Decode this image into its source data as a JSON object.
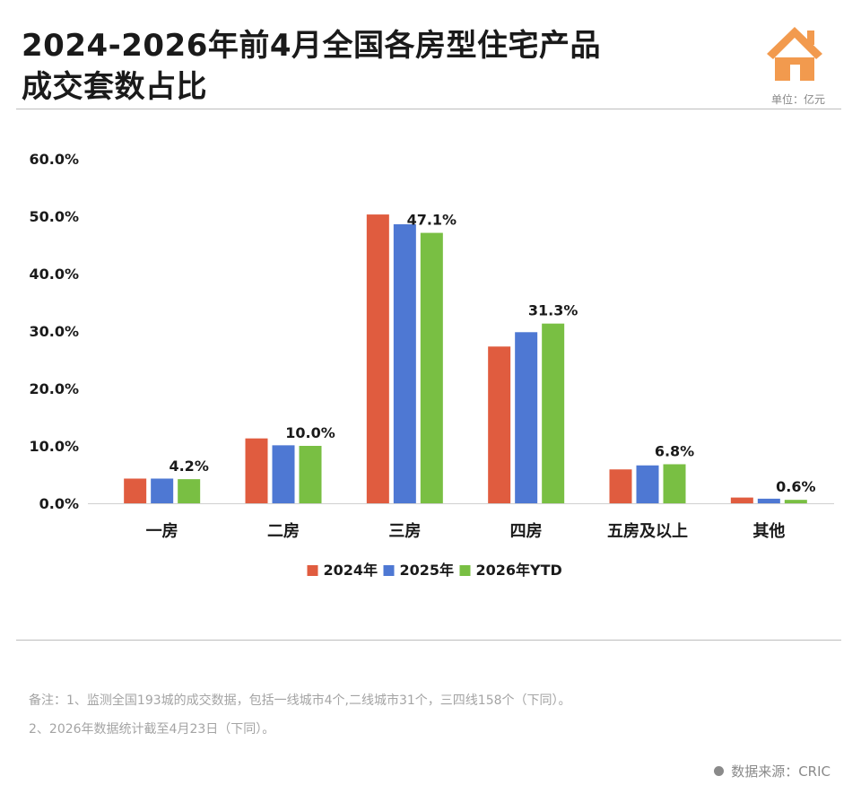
{
  "header": {
    "title_line1": "2024-2026年前4月全国各房型住宅产品",
    "title_line2": "成交套数占比",
    "unit": "单位：亿元",
    "logo_icon": "house-icon"
  },
  "chart_data": {
    "type": "bar",
    "categories": [
      "一房",
      "二房",
      "三房",
      "四房",
      "五房及以上",
      "其他"
    ],
    "series": [
      {
        "name": "2024年",
        "color": "#e05c3f",
        "values": [
          4.3,
          11.3,
          50.3,
          27.3,
          5.9,
          1.0
        ]
      },
      {
        "name": "2025年",
        "color": "#4e78d3",
        "values": [
          4.3,
          10.1,
          48.6,
          29.8,
          6.6,
          0.8
        ]
      },
      {
        "name": "2026年YTD",
        "color": "#79bf43",
        "values": [
          4.2,
          10.0,
          47.1,
          31.3,
          6.8,
          0.6
        ]
      }
    ],
    "data_labels": [
      "4.2%",
      "10.0%",
      "47.1%",
      "31.3%",
      "6.8%",
      "0.6%"
    ],
    "y_ticks": [
      "0.0%",
      "10.0%",
      "20.0%",
      "30.0%",
      "40.0%",
      "50.0%",
      "60.0%"
    ],
    "ylim": [
      0,
      60
    ],
    "grid": false,
    "legend_position": "bottom"
  },
  "notes": {
    "line1": "备注：1、监测全国193城的成交数据，包括一线城市4个,二线城市31个，三四线158个（下同）。",
    "line2": "2、2026年数据统计截至4月23日（下同）。"
  },
  "source": {
    "label": "数据来源：CRIC"
  }
}
